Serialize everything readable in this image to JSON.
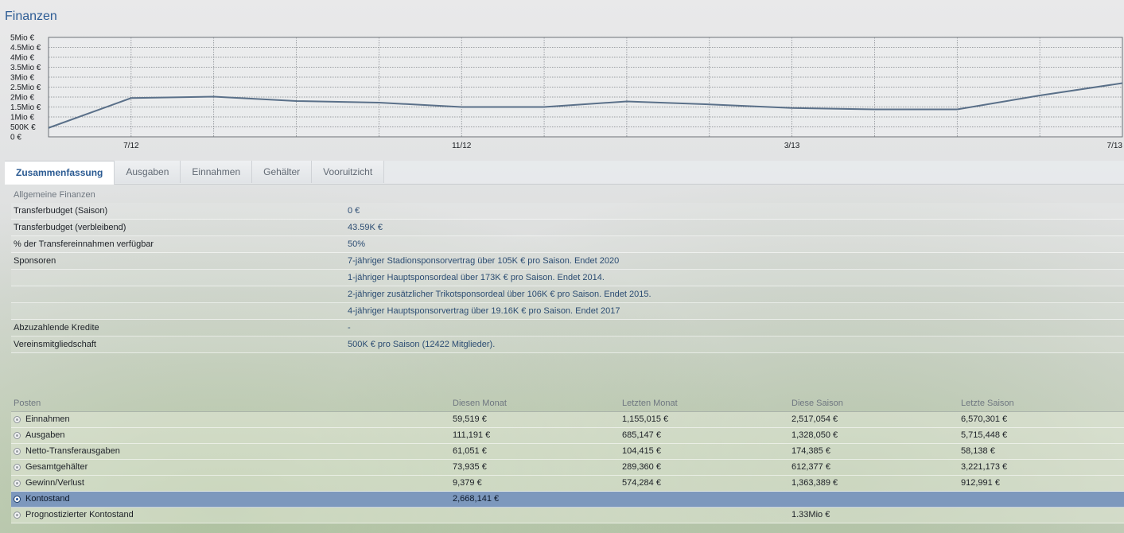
{
  "page": {
    "title": "Finanzen"
  },
  "chart_data": {
    "type": "line",
    "y_ticks": [
      "0 €",
      "500K €",
      "1Mio €",
      "1.5Mio €",
      "2Mio €",
      "2.5Mio €",
      "3Mio €",
      "3.5Mio €",
      "4Mio €",
      "4.5Mio €",
      "5Mio €"
    ],
    "x_ticks": [
      {
        "x": 1,
        "label": "7/12"
      },
      {
        "x": 5,
        "label": "11/12"
      },
      {
        "x": 9,
        "label": "3/13"
      },
      {
        "x": 13,
        "label": "7/13"
      }
    ],
    "ylim": [
      0,
      5000000
    ],
    "xlim": [
      0,
      13
    ],
    "grid": true,
    "series": [
      {
        "x": [
          0,
          1,
          2,
          3,
          4,
          5,
          6,
          7,
          8,
          9,
          10,
          11,
          12,
          13
        ],
        "values": [
          450000,
          1950000,
          2020000,
          1800000,
          1720000,
          1500000,
          1500000,
          1780000,
          1630000,
          1450000,
          1380000,
          1380000,
          2080000,
          2700000
        ],
        "color": "#5a7089"
      }
    ]
  },
  "tabs": [
    {
      "label": "Zusammenfassung",
      "active": true
    },
    {
      "label": "Ausgaben",
      "active": false
    },
    {
      "label": "Einnahmen",
      "active": false
    },
    {
      "label": "Gehälter",
      "active": false
    },
    {
      "label": "Vooruitzicht",
      "active": false
    }
  ],
  "summary": {
    "header": "Allgemeine Finanzen",
    "rows": [
      {
        "label": "Transferbudget (Saison)",
        "value": "0 €"
      },
      {
        "label": "Transferbudget (verbleibend)",
        "value": "43.59K €"
      },
      {
        "label": "% der Transfereinnahmen verfügbar",
        "value": "50%"
      },
      {
        "label": "Sponsoren",
        "value": "7-jähriger Stadionsponsorvertrag über 105K € pro Saison. Endet 2020"
      },
      {
        "label": "",
        "value": "1-jähriger Hauptsponsordeal über 173K € pro Saison. Endet 2014."
      },
      {
        "label": "",
        "value": "2-jähriger zusätzlicher Trikotsponsordeal über 106K € pro Saison. Endet 2015."
      },
      {
        "label": "",
        "value": "4-jähriger Hauptsponsorvertrag über 19.16K € pro Saison. Endet 2017"
      },
      {
        "label": "Abzuzahlende Kredite",
        "value": "-"
      },
      {
        "label": "Vereinsmitgliedschaft",
        "value": "500K € pro Saison (12422 Mitglieder)."
      }
    ]
  },
  "table": {
    "headers": [
      "Posten",
      "Diesen Monat",
      "Letzten Monat",
      "Diese Saison",
      "Letzte Saison"
    ],
    "rows": [
      {
        "cells": [
          "Einnahmen",
          "59,519 €",
          "1,155,015 €",
          "2,517,054 €",
          "6,570,301 €"
        ],
        "selected": false
      },
      {
        "cells": [
          "Ausgaben",
          "111,191 €",
          "685,147 €",
          "1,328,050 €",
          "5,715,448 €"
        ],
        "selected": false
      },
      {
        "cells": [
          "Netto-Transferausgaben",
          "61,051 €",
          "104,415 €",
          "174,385 €",
          "58,138 €"
        ],
        "selected": false
      },
      {
        "cells": [
          "Gesamtgehälter",
          "73,935 €",
          "289,360 €",
          "612,377 €",
          "3,221,173 €"
        ],
        "selected": false
      },
      {
        "cells": [
          "Gewinn/Verlust",
          "9,379 €",
          "574,284 €",
          "1,363,389 €",
          "912,991 €"
        ],
        "selected": false
      },
      {
        "cells": [
          "Kontostand",
          "2,668,141 €",
          "",
          "",
          ""
        ],
        "selected": true
      },
      {
        "cells": [
          "Prognostizierter Kontostand",
          "",
          "",
          "1.33Mio €",
          ""
        ],
        "selected": false
      }
    ]
  }
}
